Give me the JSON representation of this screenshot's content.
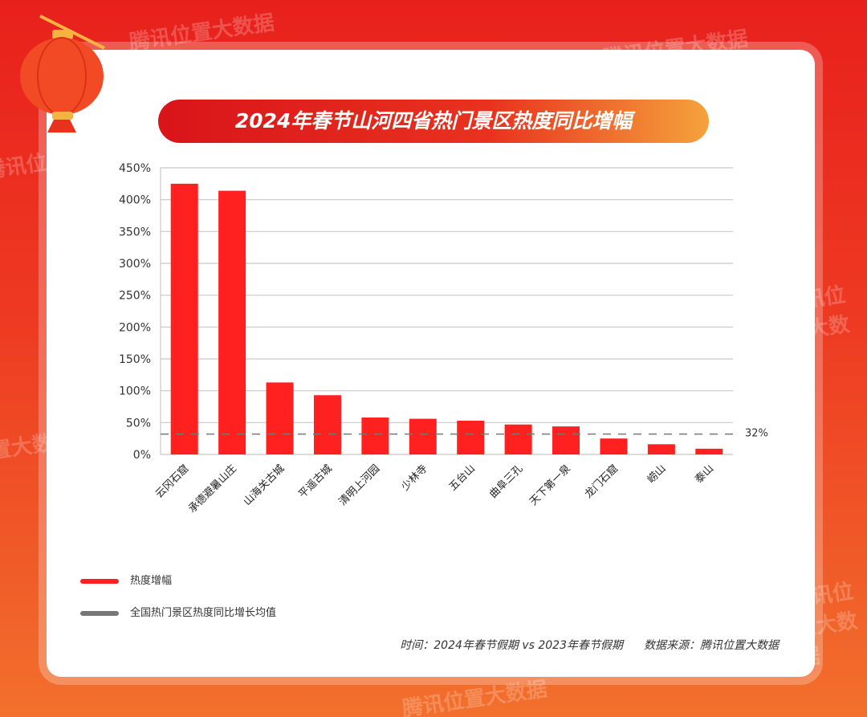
{
  "watermark": "腾讯位置大数据",
  "title": "2024年春节山河四省热门景区热度同比增幅",
  "chart_data": {
    "type": "bar",
    "title": "2024年春节山河四省热门景区热度同比增幅",
    "categories": [
      "云冈石窟",
      "承德避暑山庄",
      "山海关古城",
      "平遥古城",
      "清明上河园",
      "少林寺",
      "五台山",
      "曲阜三孔",
      "天下第一泉",
      "龙门石窟",
      "崂山",
      "泰山"
    ],
    "series": [
      {
        "name": "热度增幅",
        "values": [
          425,
          414,
          113,
          93,
          58,
          56,
          53,
          47,
          44,
          25,
          16,
          9
        ],
        "color": "#ff2020"
      }
    ],
    "reference_line": {
      "name": "全国热门景区热度同比增长均值",
      "value": 32,
      "label": "32%",
      "color": "#777777",
      "style": "dashed"
    },
    "ylim": [
      0,
      450
    ],
    "yticks": [
      "0%",
      "50%",
      "100%",
      "150%",
      "200%",
      "250%",
      "300%",
      "350%",
      "400%",
      "450%"
    ],
    "grid": true,
    "legend": "bottom-left"
  },
  "footer": {
    "time": "时间：2024年春节假期 vs 2023年春节假期",
    "source": "数据来源：腾讯位置大数据"
  }
}
